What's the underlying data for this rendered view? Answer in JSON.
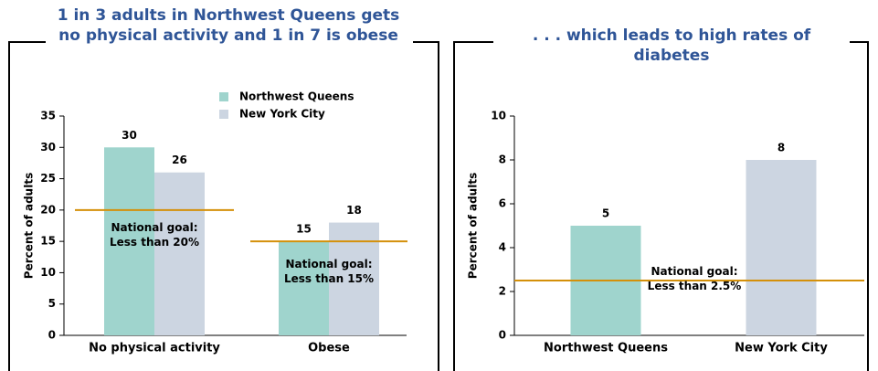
{
  "chart_data": [
    {
      "type": "bar",
      "title": "1 in 3 adults in Northwest Queens gets no physical activity and 1 in 7 is obese",
      "y_label": "Percent of adults",
      "categories": [
        "No physical activity",
        "Obese"
      ],
      "series": [
        {
          "name": "Northwest Queens",
          "color": "#9fd4cd",
          "values": [
            30,
            15
          ]
        },
        {
          "name": "New York City",
          "color": "#ccd5e1",
          "values": [
            26,
            18
          ]
        }
      ],
      "ylim": [
        0,
        35
      ],
      "yticks": [
        0,
        5,
        10,
        15,
        20,
        25,
        30,
        35
      ],
      "reference_lines": [
        {
          "value": 20,
          "label": "National goal: Less than 20%",
          "color": "#d4900a"
        },
        {
          "value": 15,
          "label": "National goal: Less than 15%",
          "color": "#d4900a"
        }
      ]
    },
    {
      "type": "bar",
      "title": ". . . which leads to high rates of diabetes",
      "y_label": "Percent of adults",
      "categories": [
        "Northwest Queens",
        "New York City"
      ],
      "values": [
        5,
        8
      ],
      "colors": [
        "#9fd4cd",
        "#ccd5e1"
      ],
      "ylim": [
        0,
        10
      ],
      "yticks": [
        0,
        2,
        4,
        6,
        8,
        10
      ],
      "reference_lines": [
        {
          "value": 2.5,
          "label": "National goal: Less than 2.5%",
          "color": "#d4900a"
        }
      ]
    }
  ]
}
